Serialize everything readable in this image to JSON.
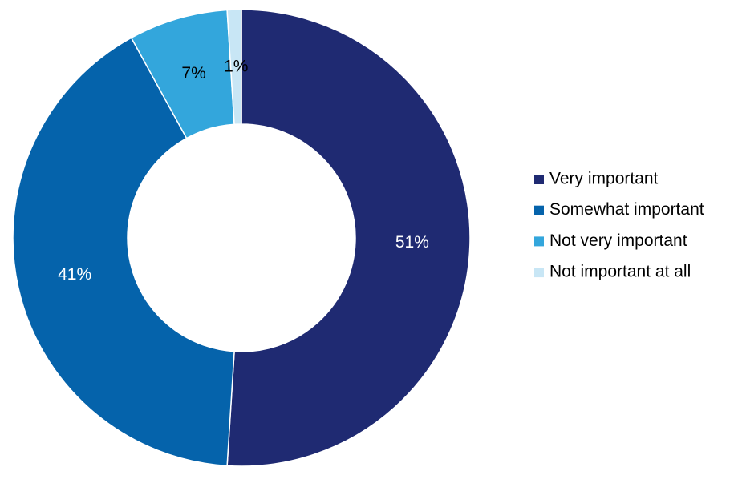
{
  "chart_data": {
    "type": "donut",
    "categories": [
      "Very important",
      "Somewhat important",
      "Not very important",
      "Not important at all"
    ],
    "values": [
      51,
      41,
      7,
      1
    ],
    "value_labels": [
      "51%",
      "41%",
      "7%",
      "1%"
    ],
    "colors": [
      "#1f2a72",
      "#0563ab",
      "#33a6dc",
      "#c8e6f5"
    ],
    "label_colors": [
      "#ffffff",
      "#ffffff",
      "#000000",
      "#000000"
    ],
    "legend": "right"
  }
}
